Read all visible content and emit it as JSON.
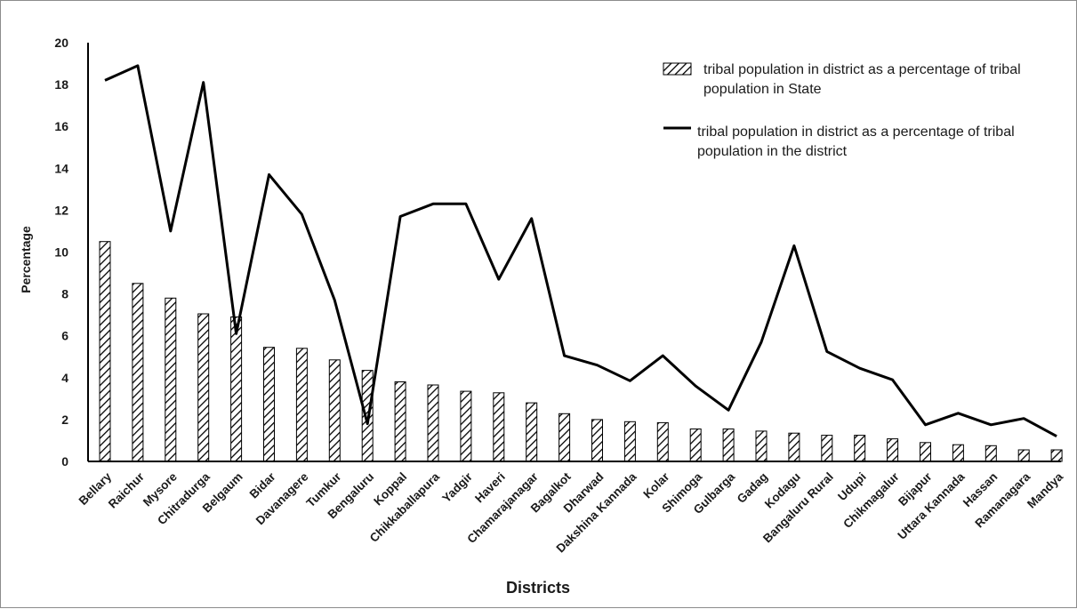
{
  "chart_data": {
    "type": "bar",
    "xlabel": "Districts",
    "ylabel": "Percentage",
    "ylim": [
      0,
      20
    ],
    "yticks": [
      0,
      2,
      4,
      6,
      8,
      10,
      12,
      14,
      16,
      18,
      20
    ],
    "grid": false,
    "legend_position": "top-right",
    "categories": [
      "Bellary",
      "Raichur",
      "Mysore",
      "Chitradurga",
      "Belgaum",
      "Bidar",
      "Davanagere",
      "Tumkur",
      "Bengaluru",
      "Koppal",
      "Chikkaballapura",
      "Yadgir",
      "Haveri",
      "Chamarajanagar",
      "Bagalkot",
      "Dharwad",
      "Dakshina Kannada",
      "Kolar",
      "Shimoga",
      "Gulbarga",
      "Gadag",
      "Kodagu",
      "Bangaluru Rural",
      "Udupi",
      "Chikmagalur",
      "Bijapur",
      "Uttara Kannada",
      "Hassan",
      "Ramanagara",
      "Mandya"
    ],
    "series": [
      {
        "name": "tribal population in district as a percentage of tribal population in State",
        "type": "bar",
        "pattern": "diagonal-hatch",
        "values": [
          10.5,
          8.5,
          7.8,
          7.05,
          6.9,
          5.45,
          5.4,
          4.85,
          4.35,
          3.8,
          3.65,
          3.35,
          3.28,
          2.8,
          2.28,
          2.0,
          1.9,
          1.85,
          1.55,
          1.55,
          1.45,
          1.35,
          1.25,
          1.25,
          1.08,
          0.9,
          0.8,
          0.75,
          0.55,
          0.55
        ]
      },
      {
        "name": "tribal population in district as a percentage of tribal population in the district",
        "type": "line",
        "values": [
          18.2,
          18.9,
          11.0,
          18.1,
          6.1,
          13.7,
          11.8,
          7.7,
          1.8,
          11.7,
          12.3,
          12.3,
          8.7,
          11.6,
          5.05,
          4.6,
          3.85,
          5.05,
          3.6,
          2.45,
          5.7,
          10.3,
          5.25,
          4.45,
          3.9,
          1.75,
          2.3,
          1.75,
          2.05,
          1.2
        ]
      }
    ]
  },
  "colors": {
    "line": "#000000",
    "bar_stroke": "#000000",
    "axis": "#000000",
    "frame": "#8c8c8c"
  }
}
